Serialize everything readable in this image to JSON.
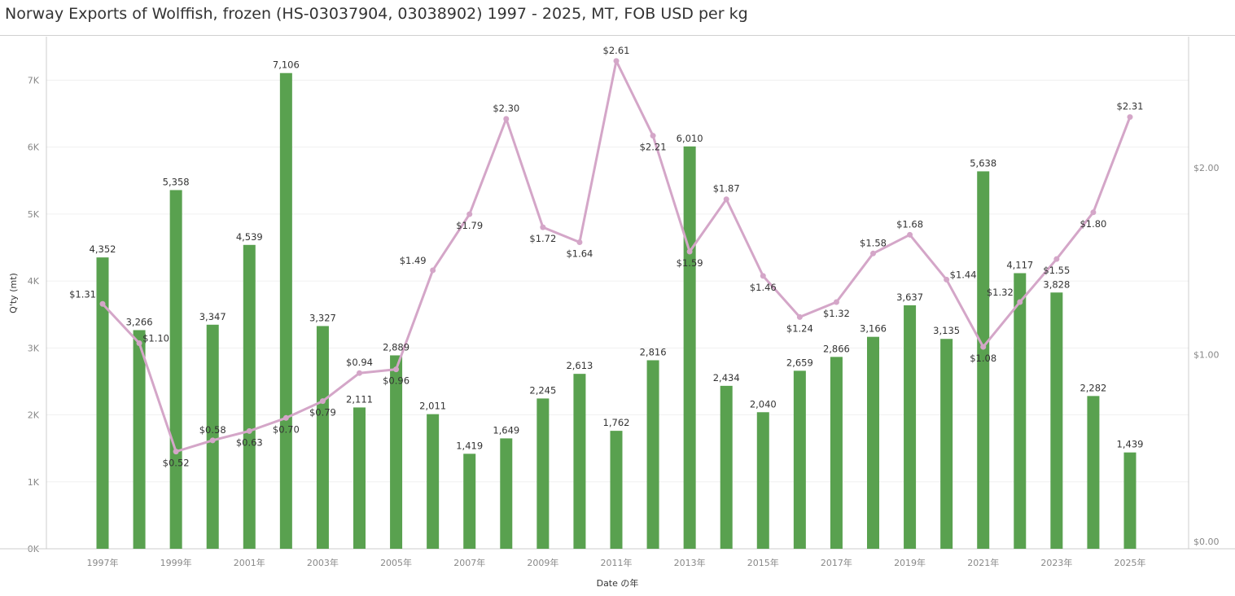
{
  "title": "Norway Exports of Wolffish, frozen (HS-03037904, 03038902) 1997 - 2025, MT, FOB USD per kg",
  "chart_data": {
    "type": "bar+line",
    "title": "Norway Exports of Wolffish, frozen (HS-03037904, 03038902) 1997 - 2025, MT, FOB USD per kg",
    "xlabel": "Date の年",
    "ylabel": "Q'ty (mt)",
    "years": [
      1997,
      1998,
      1999,
      2000,
      2001,
      2002,
      2003,
      2004,
      2005,
      2006,
      2007,
      2008,
      2009,
      2010,
      2011,
      2012,
      2013,
      2014,
      2015,
      2016,
      2017,
      2018,
      2019,
      2020,
      2021,
      2022,
      2023,
      2024,
      2025
    ],
    "x_tick_labels": [
      "1997年",
      "1999年",
      "2001年",
      "2003年",
      "2005年",
      "2007年",
      "2009年",
      "2011年",
      "2013年",
      "2015年",
      "2017年",
      "2019年",
      "2021年",
      "2023年",
      "2025年"
    ],
    "y_ticks": [
      "0K",
      "1K",
      "2K",
      "3K",
      "4K",
      "5K",
      "6K",
      "7K"
    ],
    "y2_ticks": [
      "$0.00",
      "$1.00",
      "$2.00"
    ],
    "ylim": [
      0,
      7650
    ],
    "y2lim": [
      0,
      2.74
    ],
    "series": [
      {
        "name": "Q'ty (mt)",
        "type": "bar",
        "color": "#59a14f",
        "values": [
          4352,
          3266,
          5358,
          3347,
          4539,
          7106,
          3327,
          2111,
          2889,
          2011,
          1419,
          1649,
          2245,
          2613,
          1762,
          2816,
          6010,
          2434,
          2040,
          2659,
          2866,
          3166,
          3637,
          3135,
          5638,
          4117,
          3828,
          2282,
          1439
        ],
        "labels": [
          "4,352",
          "3,266",
          "5,358",
          "3,347",
          "4,539",
          "7,106",
          "3,327",
          "2,111",
          "2,889",
          "2,011",
          "1,419",
          "1,649",
          "2,245",
          "2,613",
          "1,762",
          "2,816",
          "6,010",
          "2,434",
          "2,040",
          "2,659",
          "2,866",
          "3,166",
          "3,637",
          "3,135",
          "5,638",
          "4,117",
          "3,828",
          "2,282",
          "1,439"
        ]
      },
      {
        "name": "FOB USD per kg",
        "type": "line",
        "axis": "right",
        "color": "#d4a6c8",
        "values": [
          1.31,
          1.1,
          0.52,
          0.58,
          0.63,
          0.7,
          0.79,
          0.94,
          0.96,
          1.49,
          1.79,
          2.3,
          1.72,
          1.64,
          2.61,
          2.21,
          1.59,
          1.87,
          1.46,
          1.24,
          1.32,
          1.58,
          1.68,
          1.44,
          1.08,
          1.32,
          1.55,
          1.8,
          2.31
        ],
        "labels": [
          "$1.31",
          "$1.10",
          "$0.52",
          "$0.58",
          "$0.63",
          "$0.70",
          "$0.79",
          "$0.94",
          "$0.96",
          "$1.49",
          "$1.79",
          "$2.30",
          "$1.72",
          "$1.64",
          "$2.61",
          "$2.21",
          "$1.59",
          "$1.87",
          "$1.46",
          "$1.24",
          "$1.32",
          "$1.58",
          "$1.68",
          "$1.44",
          "$1.08",
          "$1.32",
          "$1.55",
          "$1.80",
          "$2.31"
        ]
      }
    ]
  }
}
